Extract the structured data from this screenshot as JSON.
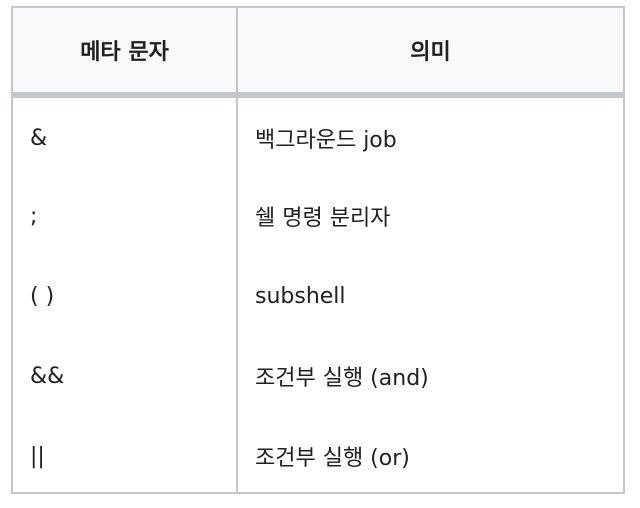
{
  "table": {
    "headers": [
      "메타 문자",
      "의미"
    ],
    "rows": [
      [
        "&",
        "백그라운드 job"
      ],
      [
        ";",
        "쉘 명령 분리자"
      ],
      [
        "( )",
        "subshell"
      ],
      [
        "&&",
        "조건부 실행 (and)"
      ],
      [
        "||",
        "조건부 실행 (or)"
      ]
    ]
  },
  "colors": {
    "header_bg": "#f8f9fa",
    "border": "#c3c6cb",
    "text": "#202122"
  }
}
